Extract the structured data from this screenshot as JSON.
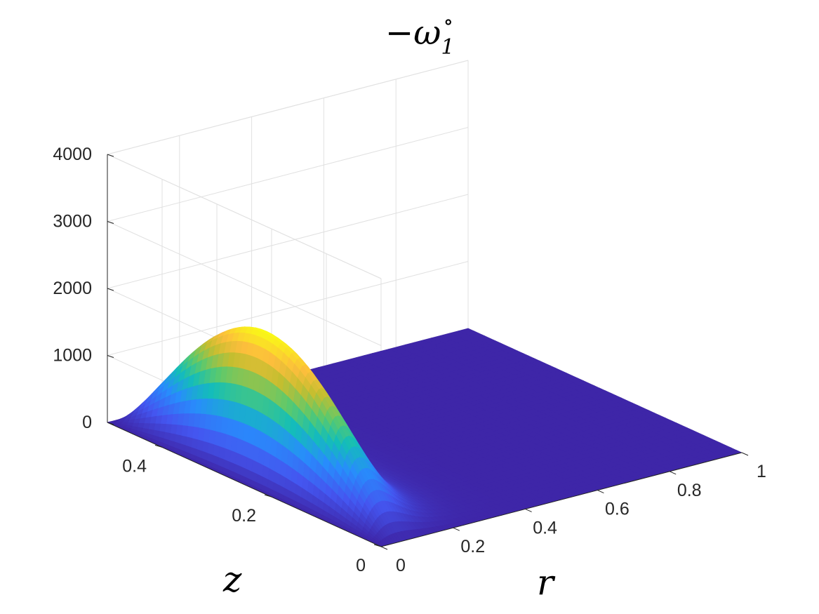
{
  "chart_data": {
    "type": "surface",
    "title": "−ω",
    "title_subscript": "1",
    "title_superscript": "∘",
    "xlabel": "r",
    "ylabel": "z",
    "zlabel": "",
    "xlim": [
      0,
      1
    ],
    "ylim": [
      0,
      0.5
    ],
    "zlim": [
      0,
      4000
    ],
    "xticks": [
      0,
      0.2,
      0.4,
      0.6,
      0.8,
      1
    ],
    "xtick_labels": [
      "0",
      "0.2",
      "0.4",
      "0.6",
      "0.8",
      "1"
    ],
    "yticks": [
      0,
      0.2,
      0.4
    ],
    "ytick_labels": [
      "0",
      "0.2",
      "0.4"
    ],
    "zticks": [
      0,
      1000,
      2000,
      3000,
      4000
    ],
    "ztick_labels": [
      "0",
      "1000",
      "2000",
      "3000",
      "4000"
    ],
    "grid": true,
    "colormap": "parula",
    "surface_peak": {
      "r": 0.06,
      "z": 0.21,
      "value": 2200
    },
    "colors": {
      "low": "#3e26a8",
      "mid": "#13beb8",
      "high": "#f9fb15"
    }
  }
}
